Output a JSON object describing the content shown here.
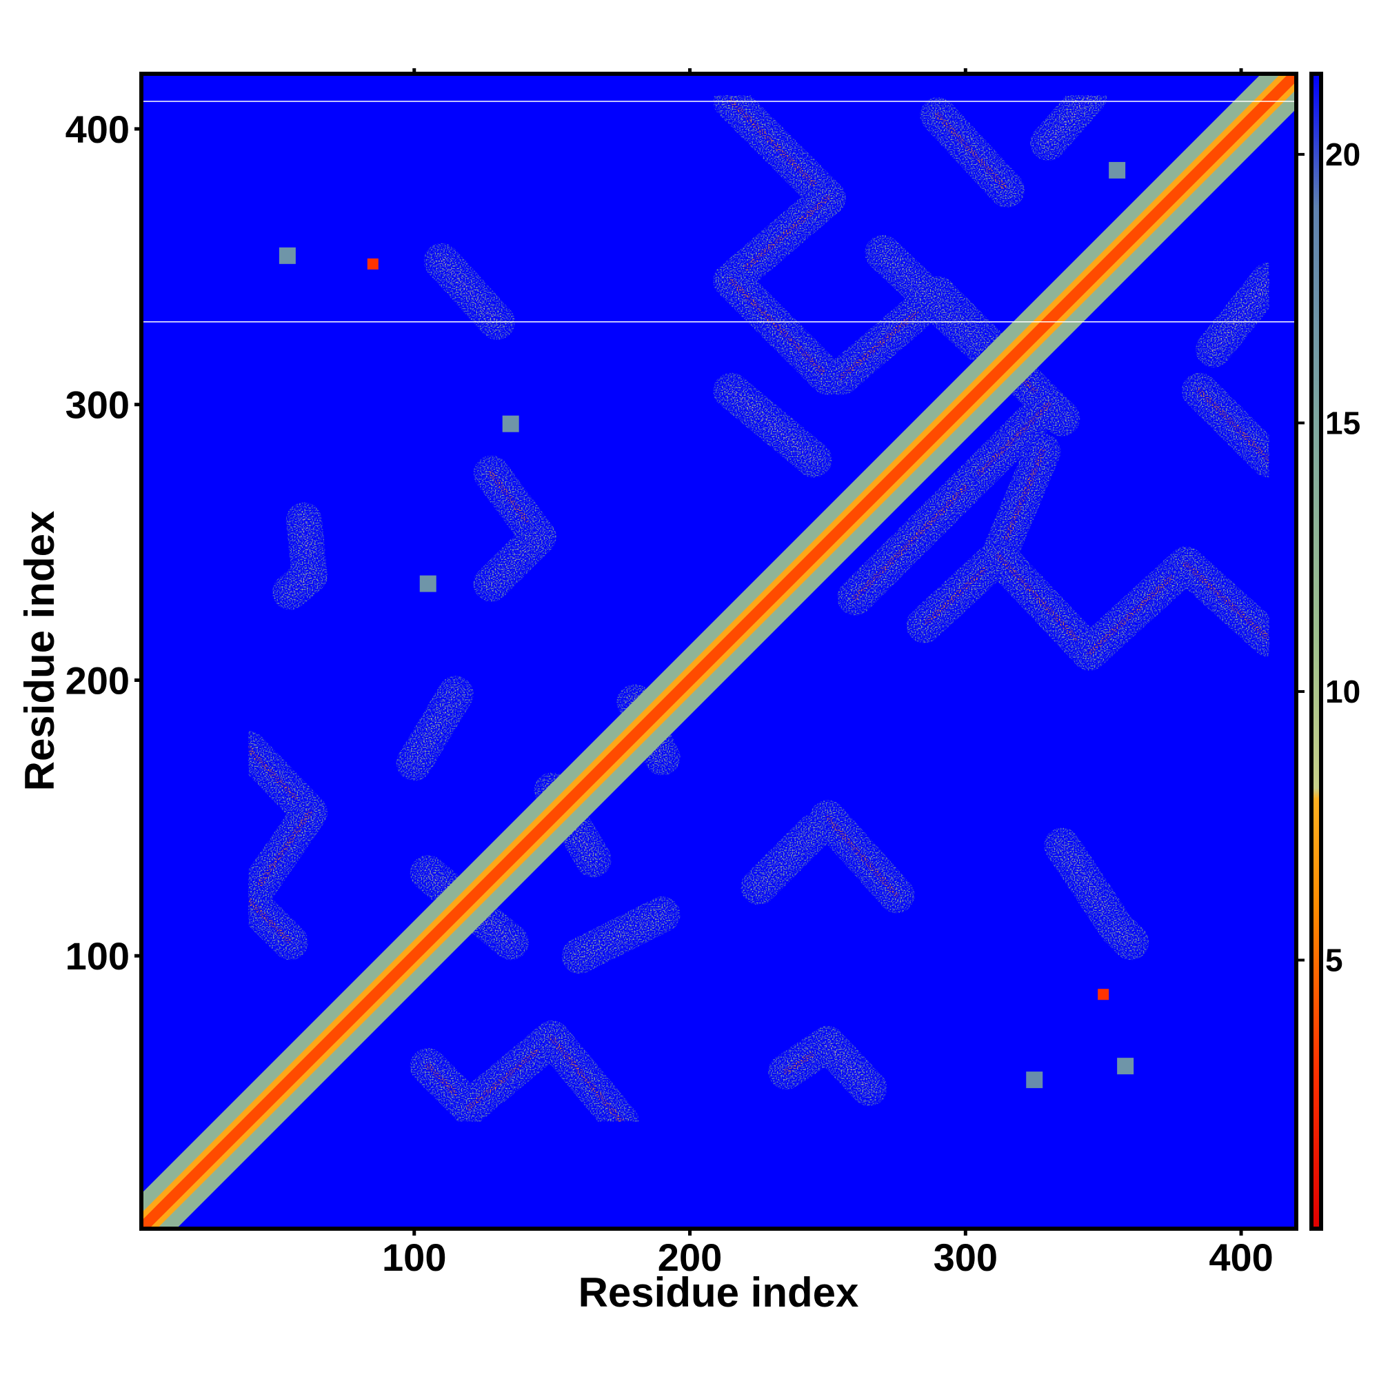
{
  "chart_data": {
    "type": "heatmap",
    "title": "",
    "xlabel": "Residue index",
    "ylabel": "Residue index",
    "xlim": [
      1,
      420
    ],
    "ylim": [
      1,
      420
    ],
    "x_ticks": [
      100,
      200,
      300,
      400
    ],
    "x_tick_labels": [
      "100",
      "200",
      "300",
      "400"
    ],
    "y_ticks": [
      100,
      200,
      300,
      400
    ],
    "y_tick_labels": [
      "100",
      "200",
      "300",
      "400"
    ],
    "grid": false,
    "legend": "colorbar, right",
    "background_color": "#0000ff",
    "colorbar": {
      "range": [
        0,
        21.5
      ],
      "ticks": [
        5,
        10,
        15,
        20
      ],
      "tick_labels": [
        "5",
        "10",
        "15",
        "20"
      ],
      "stops": [
        {
          "value": 0,
          "color": "#e00000"
        },
        {
          "value": 3,
          "color": "#ff3300"
        },
        {
          "value": 6,
          "color": "#ff8c00"
        },
        {
          "value": 8,
          "color": "#ffb020"
        },
        {
          "value": 8.2,
          "color": "#c8d08a"
        },
        {
          "value": 11,
          "color": "#9ec08e"
        },
        {
          "value": 15,
          "color": "#7fa8a0"
        },
        {
          "value": 19,
          "color": "#5f82b0"
        },
        {
          "value": 21.5,
          "color": "#0000ff"
        }
      ]
    },
    "horizontal_lines_y": [
      330,
      410
    ],
    "diagonal": {
      "from": 1,
      "to": 420,
      "core_distance": 3.8
    },
    "contact_bands": [
      {
        "x1": 215,
        "y1": 410,
        "x2": 250,
        "y2": 375,
        "distance": 7
      },
      {
        "x1": 250,
        "y1": 375,
        "x2": 215,
        "y2": 345,
        "distance": 7
      },
      {
        "x1": 215,
        "y1": 345,
        "x2": 250,
        "y2": 310,
        "distance": 7
      },
      {
        "x1": 290,
        "y1": 405,
        "x2": 315,
        "y2": 378,
        "distance": 7
      },
      {
        "x1": 290,
        "y1": 340,
        "x2": 255,
        "y2": 310,
        "distance": 7
      },
      {
        "x1": 290,
        "y1": 340,
        "x2": 335,
        "y2": 295,
        "distance": 7
      },
      {
        "x1": 330,
        "y1": 300,
        "x2": 300,
        "y2": 270,
        "distance": 7
      },
      {
        "x1": 300,
        "y1": 270,
        "x2": 260,
        "y2": 230,
        "distance": 7
      },
      {
        "x1": 245,
        "y1": 280,
        "x2": 215,
        "y2": 305,
        "distance": 8.5
      },
      {
        "x1": 328,
        "y1": 283,
        "x2": 312,
        "y2": 245,
        "distance": 7
      },
      {
        "x1": 312,
        "y1": 245,
        "x2": 285,
        "y2": 220,
        "distance": 7
      },
      {
        "x1": 312,
        "y1": 245,
        "x2": 345,
        "y2": 210,
        "distance": 7
      },
      {
        "x1": 345,
        "y1": 210,
        "x2": 380,
        "y2": 242,
        "distance": 7
      },
      {
        "x1": 380,
        "y1": 242,
        "x2": 410,
        "y2": 215,
        "distance": 7
      },
      {
        "x1": 385,
        "y1": 305,
        "x2": 410,
        "y2": 280,
        "distance": 7
      },
      {
        "x1": 345,
        "y1": 412,
        "x2": 330,
        "y2": 395,
        "distance": 8.5
      },
      {
        "x1": 390,
        "y1": 320,
        "x2": 410,
        "y2": 345,
        "distance": 8.5
      },
      {
        "x1": 270,
        "y1": 355,
        "x2": 305,
        "y2": 322,
        "distance": 10
      },
      {
        "x1": 128,
        "y1": 275,
        "x2": 145,
        "y2": 252,
        "distance": 7
      },
      {
        "x1": 145,
        "y1": 252,
        "x2": 128,
        "y2": 235,
        "distance": 10
      },
      {
        "x1": 110,
        "y1": 352,
        "x2": 130,
        "y2": 330,
        "distance": 8.5
      },
      {
        "x1": 60,
        "y1": 258,
        "x2": 62,
        "y2": 238,
        "distance": 8.5
      },
      {
        "x1": 62,
        "y1": 238,
        "x2": 55,
        "y2": 232,
        "distance": 8.5
      },
      {
        "x1": 40,
        "y1": 175,
        "x2": 62,
        "y2": 152,
        "distance": 7
      },
      {
        "x1": 62,
        "y1": 152,
        "x2": 40,
        "y2": 120,
        "distance": 7
      },
      {
        "x1": 40,
        "y1": 120,
        "x2": 55,
        "y2": 105,
        "distance": 7
      },
      {
        "x1": 105,
        "y1": 130,
        "x2": 135,
        "y2": 105,
        "distance": 8.5
      },
      {
        "x1": 150,
        "y1": 160,
        "x2": 165,
        "y2": 135,
        "distance": 9
      },
      {
        "x1": 100,
        "y1": 170,
        "x2": 115,
        "y2": 195,
        "distance": 10
      },
      {
        "x1": 160,
        "y1": 100,
        "x2": 190,
        "y2": 115,
        "distance": 10
      },
      {
        "x1": 180,
        "y1": 192,
        "x2": 190,
        "y2": 172,
        "distance": 9
      },
      {
        "x1": 105,
        "y1": 60,
        "x2": 120,
        "y2": 45,
        "distance": 7
      },
      {
        "x1": 120,
        "y1": 45,
        "x2": 150,
        "y2": 70,
        "distance": 7
      },
      {
        "x1": 150,
        "y1": 70,
        "x2": 175,
        "y2": 40,
        "distance": 7
      },
      {
        "x1": 235,
        "y1": 58,
        "x2": 250,
        "y2": 68,
        "distance": 7
      },
      {
        "x1": 250,
        "y1": 68,
        "x2": 265,
        "y2": 52,
        "distance": 8.5
      },
      {
        "x1": 250,
        "y1": 150,
        "x2": 275,
        "y2": 122,
        "distance": 7
      },
      {
        "x1": 225,
        "y1": 125,
        "x2": 245,
        "y2": 145,
        "distance": 10
      },
      {
        "x1": 335,
        "y1": 140,
        "x2": 355,
        "y2": 110,
        "distance": 9
      },
      {
        "x1": 355,
        "y1": 110,
        "x2": 360,
        "y2": 105,
        "distance": 9
      }
    ],
    "isolated_contacts": [
      {
        "x": 85,
        "y": 351,
        "distance": 3
      },
      {
        "x": 350,
        "y": 86,
        "distance": 3
      },
      {
        "x": 54,
        "y": 354,
        "distance": 17
      },
      {
        "x": 135,
        "y": 293,
        "distance": 17
      },
      {
        "x": 105,
        "y": 235,
        "distance": 17
      },
      {
        "x": 358,
        "y": 60,
        "distance": 17
      },
      {
        "x": 325,
        "y": 55,
        "distance": 18
      },
      {
        "x": 355,
        "y": 385,
        "distance": 17
      }
    ]
  }
}
